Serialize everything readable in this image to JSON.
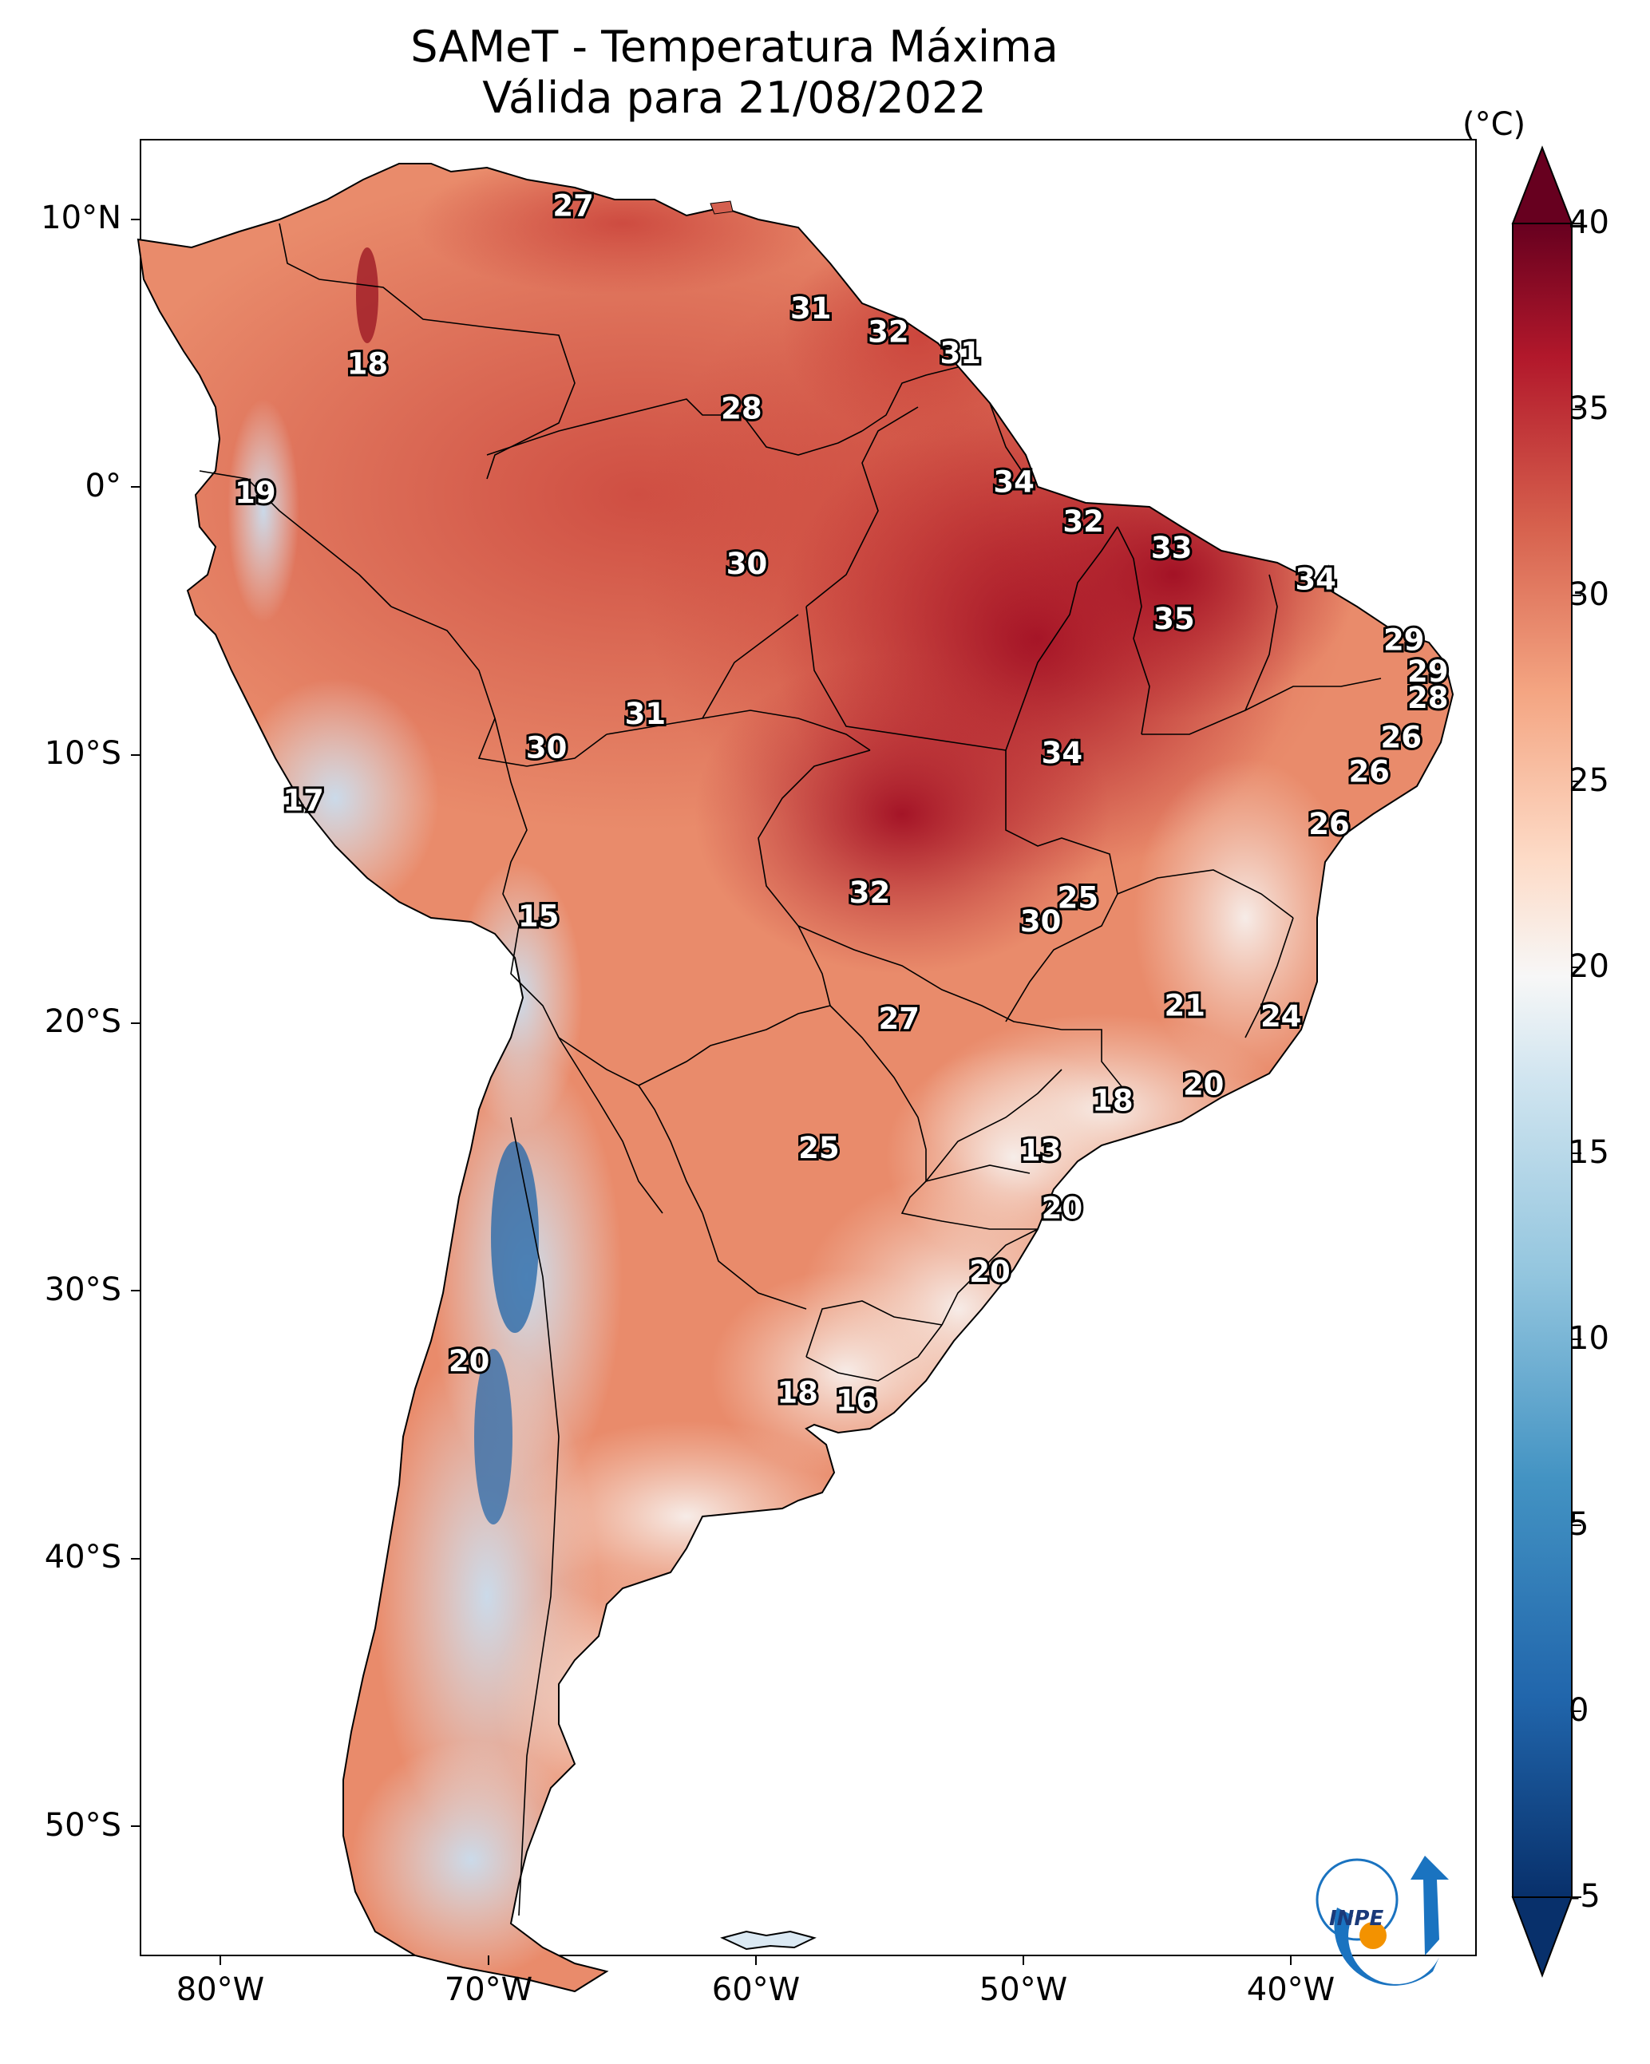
{
  "title": "SAMeT - Temperatura Máxima",
  "subtitle": "Válida para 21/08/2022",
  "colorbar": {
    "unit": "(°C)",
    "ticks": [
      "40",
      "35",
      "30",
      "25",
      "20",
      "15",
      "10",
      "5",
      "0",
      "-5"
    ],
    "range": [
      -5,
      40
    ]
  },
  "axes": {
    "lat_labels": [
      "10°N",
      "0°",
      "10°S",
      "20°S",
      "30°S",
      "40°S",
      "50°S"
    ],
    "lon_labels": [
      "80°W",
      "70°W",
      "60°W",
      "50°W",
      "40°W"
    ]
  },
  "logo": {
    "text": "INPE"
  },
  "colors": {
    "very_hot": "#a50f26",
    "hot": "#c93b3a",
    "warm": "#e07a5f",
    "mild": "#f4b79a",
    "neutral": "#f7f3f1",
    "cool": "#d5e6f2",
    "cold": "#7fb3d8",
    "very_cold": "#2a6aa9",
    "logo_blue": "#1a73c0",
    "logo_orange": "#f39200"
  },
  "chart_data": {
    "type": "heatmap",
    "title": "SAMeT - Temperatura Máxima",
    "subtitle": "Válida para 21/08/2022",
    "colorbar_label": "(°C)",
    "value_range": [
      -5,
      40
    ],
    "lon_range": [
      -83,
      -33
    ],
    "lat_range": [
      -56,
      13
    ],
    "point_labels": [
      {
        "value": "27",
        "lon": -66.8,
        "lat": 10.5
      },
      {
        "value": "18",
        "lon": -74.5,
        "lat": 4.5
      },
      {
        "value": "19",
        "lon": -78.7,
        "lat": -0.4
      },
      {
        "value": "31",
        "lon": -57.9,
        "lat": 6.6
      },
      {
        "value": "32",
        "lon": -55.0,
        "lat": 5.7
      },
      {
        "value": "31",
        "lon": -52.3,
        "lat": 4.9
      },
      {
        "value": "28",
        "lon": -60.5,
        "lat": 2.8
      },
      {
        "value": "34",
        "lon": -50.3,
        "lat": 0.0
      },
      {
        "value": "32",
        "lon": -47.7,
        "lat": -1.5
      },
      {
        "value": "33",
        "lon": -44.4,
        "lat": -2.5
      },
      {
        "value": "30",
        "lon": -60.3,
        "lat": -3.1
      },
      {
        "value": "34",
        "lon": -39.0,
        "lat": -3.7
      },
      {
        "value": "35",
        "lon": -44.3,
        "lat": -5.2
      },
      {
        "value": "29",
        "lon": -35.7,
        "lat": -6.0
      },
      {
        "value": "29",
        "lon": -34.8,
        "lat": -7.2
      },
      {
        "value": "28",
        "lon": -34.8,
        "lat": -8.2
      },
      {
        "value": "31",
        "lon": -64.1,
        "lat": -8.8
      },
      {
        "value": "30",
        "lon": -67.8,
        "lat": -10.1
      },
      {
        "value": "34",
        "lon": -48.5,
        "lat": -10.3
      },
      {
        "value": "26",
        "lon": -35.8,
        "lat": -9.7
      },
      {
        "value": "26",
        "lon": -37.0,
        "lat": -11.0
      },
      {
        "value": "17",
        "lon": -76.9,
        "lat": -12.1
      },
      {
        "value": "26",
        "lon": -38.5,
        "lat": -13.0
      },
      {
        "value": "32",
        "lon": -55.7,
        "lat": -15.6
      },
      {
        "value": "25",
        "lon": -47.9,
        "lat": -15.8
      },
      {
        "value": "30",
        "lon": -49.3,
        "lat": -16.7
      },
      {
        "value": "15",
        "lon": -68.1,
        "lat": -16.5
      },
      {
        "value": "21",
        "lon": -43.9,
        "lat": -19.9
      },
      {
        "value": "24",
        "lon": -40.3,
        "lat": -20.3
      },
      {
        "value": "27",
        "lon": -54.6,
        "lat": -20.4
      },
      {
        "value": "20",
        "lon": -43.2,
        "lat": -22.9
      },
      {
        "value": "18",
        "lon": -46.6,
        "lat": -23.5
      },
      {
        "value": "25",
        "lon": -57.6,
        "lat": -25.3
      },
      {
        "value": "13",
        "lon": -49.3,
        "lat": -25.4
      },
      {
        "value": "20",
        "lon": -48.5,
        "lat": -27.6
      },
      {
        "value": "20",
        "lon": -51.2,
        "lat": -30.0
      },
      {
        "value": "20",
        "lon": -70.7,
        "lat": -33.4
      },
      {
        "value": "18",
        "lon": -58.4,
        "lat": -34.6
      },
      {
        "value": "16",
        "lon": -56.2,
        "lat": -34.9
      }
    ]
  }
}
